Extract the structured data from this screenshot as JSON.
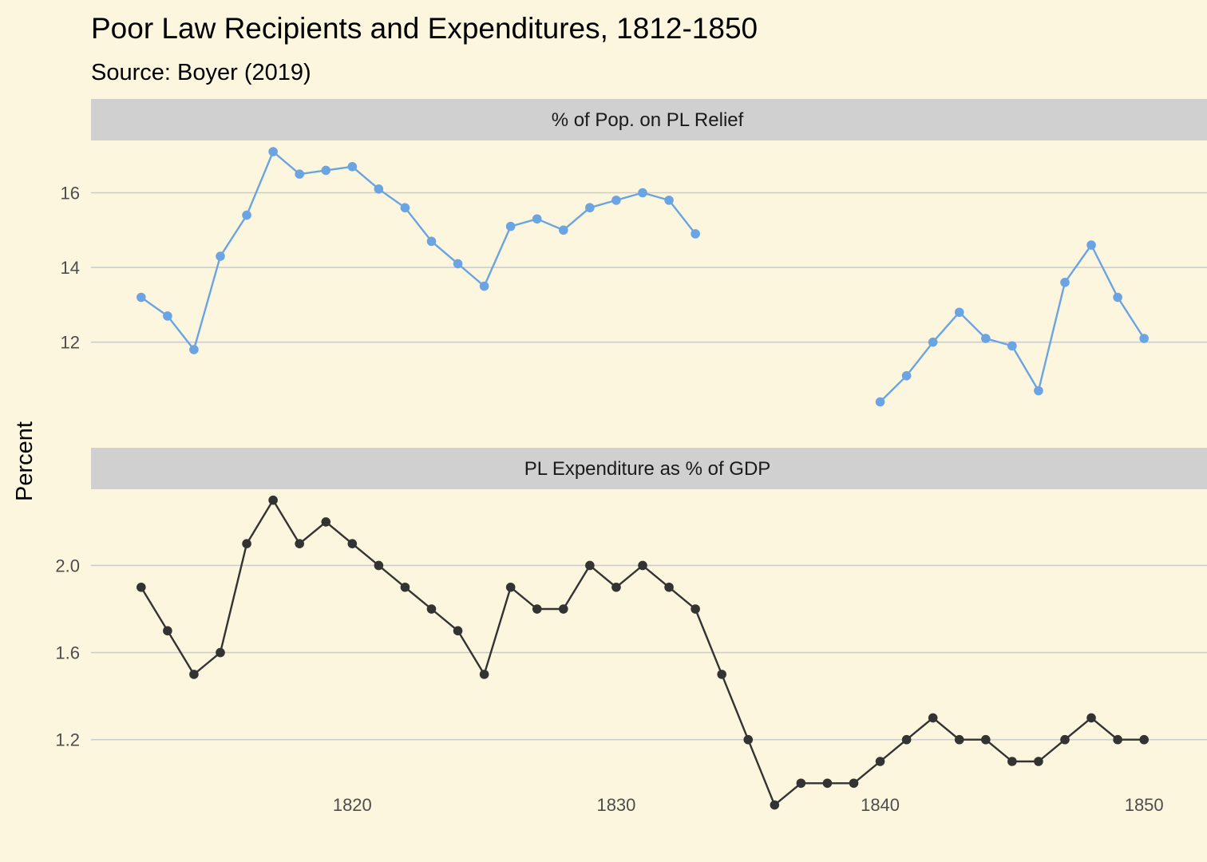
{
  "chart_data": {
    "type": "line",
    "title": "Poor Law Recipients and Expenditures, 1812-1850",
    "subtitle": "Source: Boyer (2019)",
    "ylabel": "Percent",
    "xlabel": "",
    "x_ticks": [
      1820,
      1830,
      1840,
      1850
    ],
    "xlim": [
      1810.1,
      1851.9
    ],
    "colors": {
      "background": "#fdf6df",
      "strip": "#d0d0d0",
      "grid": "#cccccc"
    },
    "panels": [
      {
        "strip_label": "% of Pop. on PL Relief",
        "color": "#6aa4e2",
        "ylim": [
          9.45,
          17.4
        ],
        "y_ticks": [
          12,
          14,
          16
        ],
        "segments": [
          {
            "x": [
              1812,
              1813,
              1814,
              1815,
              1816,
              1817,
              1818,
              1819,
              1820,
              1821,
              1822,
              1823,
              1824,
              1825,
              1826,
              1827,
              1828,
              1829,
              1830,
              1831,
              1832,
              1833
            ],
            "y": [
              13.2,
              12.7,
              11.8,
              14.3,
              15.4,
              17.1,
              16.5,
              16.6,
              16.7,
              16.1,
              15.6,
              14.7,
              14.1,
              13.5,
              15.1,
              15.3,
              15.0,
              15.6,
              15.8,
              16.0,
              15.8,
              14.9
            ]
          },
          {
            "x": [
              1840,
              1841,
              1842,
              1843,
              1844,
              1845,
              1846,
              1847,
              1848,
              1849,
              1850
            ],
            "y": [
              10.4,
              11.1,
              12.0,
              12.8,
              12.1,
              11.9,
              10.7,
              13.6,
              14.6,
              13.2,
              12.1
            ]
          }
        ]
      },
      {
        "strip_label": "PL Expenditure as % of GDP",
        "color": "#333333",
        "ylim": [
          0.99,
          2.35
        ],
        "y_ticks": [
          1.2,
          1.6,
          2.0
        ],
        "segments": [
          {
            "x": [
              1812,
              1813,
              1814,
              1815,
              1816,
              1817,
              1818,
              1819,
              1820,
              1821,
              1822,
              1823,
              1824,
              1825,
              1826,
              1827,
              1828,
              1829,
              1830,
              1831,
              1832,
              1833,
              1834,
              1835,
              1836,
              1837,
              1838,
              1839,
              1840,
              1841,
              1842,
              1843,
              1844,
              1845,
              1846,
              1847,
              1848,
              1849,
              1850
            ],
            "y": [
              1.9,
              1.7,
              1.5,
              1.6,
              2.1,
              2.3,
              2.1,
              2.2,
              2.1,
              2.0,
              1.9,
              1.8,
              1.7,
              1.5,
              1.9,
              1.8,
              1.8,
              2.0,
              1.9,
              2.0,
              1.9,
              1.8,
              1.5,
              1.2,
              0.9,
              1.0,
              1.0,
              1.0,
              1.1,
              1.2,
              1.3,
              1.2,
              1.2,
              1.1,
              1.1,
              1.2,
              1.3,
              1.2,
              1.2
            ]
          }
        ]
      }
    ]
  }
}
